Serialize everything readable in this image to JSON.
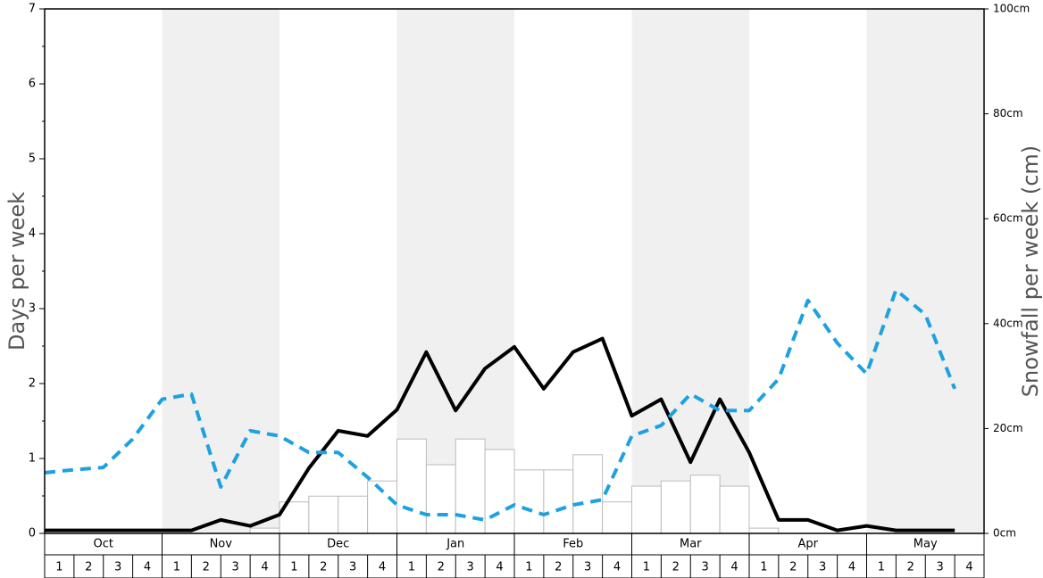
{
  "chart_data": {
    "type": "bar-line",
    "y_label": "Days per week",
    "y2_label": "Snowfall per week (cm)",
    "months": [
      "Oct",
      "Nov",
      "Dec",
      "Jan",
      "Feb",
      "Mar",
      "Apr",
      "May"
    ],
    "categories": [
      "1",
      "2",
      "3",
      "4",
      "1",
      "2",
      "3",
      "4",
      "1",
      "2",
      "3",
      "4",
      "1",
      "2",
      "3",
      "4",
      "1",
      "2",
      "3",
      "4",
      "1",
      "2",
      "3",
      "4",
      "1",
      "2",
      "3",
      "4",
      "1",
      "2",
      "3",
      "4"
    ],
    "ylim": [
      0,
      7
    ],
    "yticks": [
      0,
      1,
      2,
      3,
      4,
      5,
      6,
      7
    ],
    "y2lim": [
      0,
      100
    ],
    "y2ticks": [
      {
        "value": 0,
        "label": "0cm"
      },
      {
        "value": 20,
        "label": "20cm"
      },
      {
        "value": 40,
        "label": "40cm"
      },
      {
        "value": 60,
        "label": "60cm"
      },
      {
        "value": 80,
        "label": "80cm"
      },
      {
        "value": 100,
        "label": "100cm"
      }
    ],
    "series": [
      {
        "type": "bar",
        "axis": "y2",
        "color": "#ffffff",
        "values": [
          0,
          0,
          0,
          0,
          0,
          0,
          0,
          1,
          6,
          7.1,
          7.1,
          10,
          18,
          13.1,
          18,
          16,
          12.1,
          12.1,
          15,
          6,
          9,
          10,
          11.1,
          9,
          1,
          0,
          0,
          0,
          0,
          0,
          0,
          0
        ]
      },
      {
        "type": "line",
        "color": "#000000",
        "dashed": false,
        "values": [
          0.04,
          0.04,
          0.04,
          0.04,
          0.04,
          0.04,
          0.18,
          0.1,
          0.25,
          0.87,
          1.37,
          1.3,
          1.65,
          2.42,
          1.64,
          2.2,
          2.49,
          1.93,
          2.42,
          2.6,
          1.57,
          1.79,
          0.95,
          1.79,
          1.08,
          0.18,
          0.18,
          0.04,
          0.1,
          0.04,
          0.04,
          0.04
        ]
      },
      {
        "type": "line",
        "color": "#1da1e2",
        "dashed": true,
        "values": [
          0.81,
          0.85,
          0.88,
          1.26,
          1.79,
          1.86,
          0.62,
          1.37,
          1.3,
          1.08,
          1.08,
          0.75,
          0.38,
          0.25,
          0.25,
          0.18,
          0.38,
          0.25,
          0.38,
          0.45,
          1.3,
          1.44,
          1.86,
          1.64,
          1.64,
          2.06,
          3.11,
          2.54,
          2.13,
          3.25,
          2.92,
          1.93
        ]
      }
    ]
  }
}
